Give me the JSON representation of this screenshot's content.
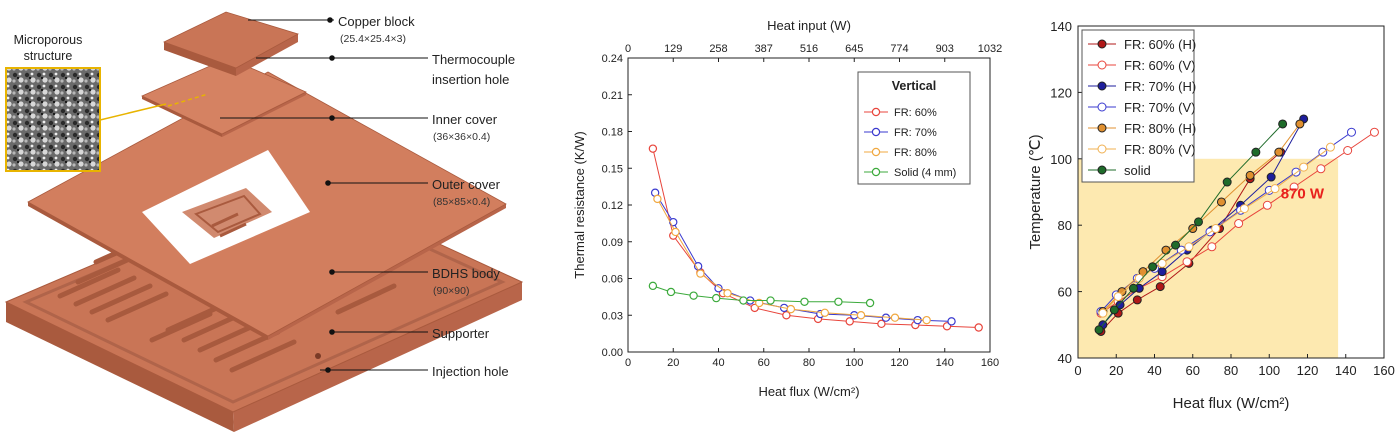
{
  "diagram": {
    "inset_label_line1": "Microporous",
    "inset_label_line2": "structure",
    "labels": [
      {
        "name": "Copper block",
        "dims": "(25.4×25.4×3)"
      },
      {
        "name": "Thermocouple",
        "name2": "insertion hole",
        "dims": ""
      },
      {
        "name": "Inner cover",
        "dims": "(36×36×0.4)"
      },
      {
        "name": "Outer cover",
        "dims": "(85×85×0.4)"
      },
      {
        "name": "BDHS body",
        "dims": "(90×90)"
      },
      {
        "name": "Supporter",
        "dims": ""
      },
      {
        "name": "Injection hole",
        "dims": ""
      }
    ],
    "colors": {
      "copper": "#c97556",
      "copper_dark": "#a95a3e",
      "copper_light": "#d88b6c",
      "leader": "#e8b400"
    }
  },
  "chart_data": [
    {
      "type": "line",
      "title": "",
      "xlabel": "Heat flux (W/cm²)",
      "ylabel": "Thermal resistance (K/W)",
      "x2label": "Heat input (W)",
      "xlim": [
        0,
        160
      ],
      "ylim": [
        0,
        0.24
      ],
      "xticks": [
        "0",
        "20",
        "40",
        "60",
        "80",
        "100",
        "120",
        "140",
        "160"
      ],
      "yticks": [
        "0.00",
        "0.03",
        "0.06",
        "0.09",
        "0.12",
        "0.15",
        "0.18",
        "0.21",
        "0.24"
      ],
      "x2ticks": [
        "0",
        "129",
        "258",
        "387",
        "516",
        "645",
        "774",
        "903",
        "1032"
      ],
      "legend_title": "Vertical",
      "legend_position": "top-right",
      "grid": false,
      "series": [
        {
          "name": "FR: 60%",
          "color": "#e8453c",
          "x": [
            11,
            20,
            32,
            42,
            56,
            70,
            84,
            98,
            112,
            127,
            141,
            155
          ],
          "y": [
            0.166,
            0.095,
            0.065,
            0.048,
            0.036,
            0.03,
            0.027,
            0.025,
            0.023,
            0.022,
            0.021,
            0.02
          ]
        },
        {
          "name": "FR: 70%",
          "color": "#3a3acf",
          "x": [
            12,
            20,
            31,
            40,
            54,
            69,
            85,
            100,
            114,
            128,
            143
          ],
          "y": [
            0.13,
            0.106,
            0.07,
            0.052,
            0.042,
            0.036,
            0.031,
            0.03,
            0.028,
            0.026,
            0.025
          ]
        },
        {
          "name": "FR: 80%",
          "color": "#f0a840",
          "x": [
            13,
            21,
            32,
            44,
            58,
            72,
            87,
            103,
            118,
            132
          ],
          "y": [
            0.125,
            0.098,
            0.064,
            0.048,
            0.04,
            0.035,
            0.032,
            0.03,
            0.028,
            0.026
          ]
        },
        {
          "name": "Solid (4 mm)",
          "color": "#3caa3c",
          "x": [
            11,
            19,
            29,
            39,
            51,
            63,
            78,
            93,
            107
          ],
          "y": [
            0.054,
            0.049,
            0.046,
            0.044,
            0.042,
            0.042,
            0.041,
            0.041,
            0.04
          ]
        }
      ]
    },
    {
      "type": "scatter",
      "title": "",
      "xlabel": "Heat flux (W/cm²)",
      "ylabel": "Temperature (℃)",
      "xlim": [
        0,
        160
      ],
      "ylim": [
        40,
        140
      ],
      "xticks": [
        "0",
        "20",
        "40",
        "60",
        "80",
        "100",
        "120",
        "140",
        "160"
      ],
      "yticks": [
        "40",
        "60",
        "80",
        "100",
        "120",
        "140"
      ],
      "annotation": "870 W",
      "shaded_region": {
        "x": [
          0,
          136
        ],
        "y": [
          40,
          100
        ],
        "color": "#fde9b0"
      },
      "legend_position": "top-left",
      "grid": false,
      "series": [
        {
          "name": "FR: 60% (H)",
          "color": "#b01818",
          "filled": true,
          "x": [
            12,
            21,
            31,
            43,
            58,
            74,
            90,
            106
          ],
          "y": [
            48,
            53.5,
            57.5,
            61.5,
            68.5,
            79,
            94,
            102
          ]
        },
        {
          "name": "FR: 60% (V)",
          "color": "#e8453c",
          "filled": false,
          "x": [
            12,
            21,
            32,
            44,
            57,
            70,
            84,
            99,
            113,
            127,
            141,
            155
          ],
          "y": [
            53.5,
            57,
            61,
            64.5,
            69,
            73.5,
            80.5,
            86,
            91.5,
            97,
            102.5,
            108
          ]
        },
        {
          "name": "FR: 70% (H)",
          "color": "#1e1e9c",
          "filled": true,
          "x": [
            13,
            22,
            32,
            44,
            57,
            70,
            85,
            101,
            118
          ],
          "y": [
            50,
            56,
            61,
            66,
            72.5,
            78.5,
            86,
            94.5,
            112
          ]
        },
        {
          "name": "FR: 70% (V)",
          "color": "#3a3acf",
          "filled": false,
          "x": [
            12,
            20,
            31,
            40,
            54,
            69,
            85,
            100,
            114,
            128,
            143
          ],
          "y": [
            54,
            59,
            64,
            67,
            72.5,
            78,
            84.5,
            90.5,
            96,
            102,
            108
          ]
        },
        {
          "name": "FR: 80% (H)",
          "color": "#e09030",
          "filled": true,
          "x": [
            13,
            23,
            34,
            46,
            60,
            75,
            90,
            105,
            116
          ],
          "y": [
            54,
            60,
            66,
            72.5,
            79,
            87,
            95,
            102,
            110.5
          ]
        },
        {
          "name": "FR: 80% (V)",
          "color": "#f0b050",
          "filled": false,
          "x": [
            13,
            21,
            32,
            44,
            58,
            72,
            87,
            103,
            118,
            132
          ],
          "y": [
            53.5,
            58.5,
            64,
            68.5,
            73.5,
            79,
            85,
            91,
            97.5,
            103.5
          ]
        },
        {
          "name": "solid",
          "color": "#1e6b2a",
          "filled": true,
          "x": [
            11,
            19,
            29,
            39,
            51,
            63,
            78,
            93,
            107
          ],
          "y": [
            48.5,
            54.5,
            61,
            67.5,
            74,
            81,
            93,
            102,
            110.5
          ]
        }
      ]
    }
  ]
}
